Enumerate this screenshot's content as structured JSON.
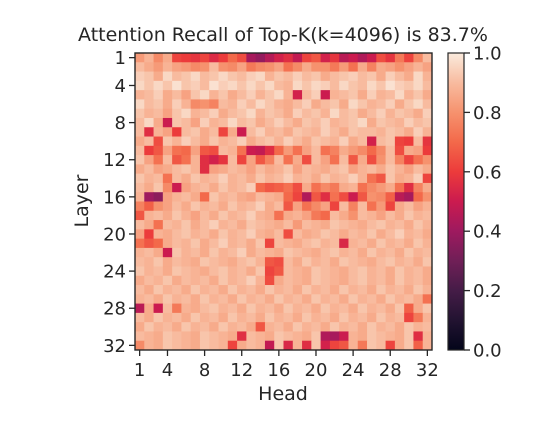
{
  "chart_data": {
    "type": "heatmap",
    "title": "Attention Recall of Top-K(k=4096) is 83.7%",
    "xlabel": "Head",
    "ylabel": "Layer",
    "x_tick_labels": [
      "1",
      "4",
      "8",
      "12",
      "16",
      "20",
      "24",
      "28",
      "32"
    ],
    "x_tick_values": [
      1,
      4,
      8,
      12,
      16,
      20,
      24,
      28,
      32
    ],
    "y_tick_labels": [
      "1",
      "4",
      "8",
      "12",
      "16",
      "20",
      "24",
      "28",
      "32"
    ],
    "y_tick_values": [
      1,
      4,
      8,
      12,
      16,
      20,
      24,
      28,
      32
    ],
    "rows": 32,
    "cols": 32,
    "colorbar": {
      "range": [
        0.0,
        1.0
      ],
      "tick_labels": [
        "0.0",
        "0.2",
        "0.4",
        "0.6",
        "0.8",
        "1.0"
      ],
      "tick_values": [
        0.0,
        0.2,
        0.4,
        0.6,
        0.8,
        1.0
      ]
    },
    "colormap": "rocket",
    "values": [
      [
        0.82,
        0.88,
        0.78,
        0.86,
        0.62,
        0.6,
        0.58,
        0.62,
        0.55,
        0.6,
        0.7,
        0.64,
        0.42,
        0.38,
        0.45,
        0.52,
        0.56,
        0.48,
        0.62,
        0.66,
        0.52,
        0.58,
        0.46,
        0.5,
        0.44,
        0.5,
        0.64,
        0.58,
        0.74,
        0.62,
        0.78,
        0.9
      ],
      [
        0.9,
        0.86,
        0.82,
        0.88,
        0.84,
        0.82,
        0.78,
        0.8,
        0.9,
        0.8,
        0.78,
        0.84,
        0.74,
        0.78,
        0.8,
        0.84,
        0.72,
        0.78,
        0.86,
        0.8,
        0.8,
        0.74,
        0.82,
        0.72,
        0.86,
        0.76,
        0.86,
        0.84,
        0.8,
        0.84,
        0.88,
        0.84
      ],
      [
        0.94,
        0.92,
        0.86,
        0.96,
        0.9,
        0.92,
        0.96,
        0.9,
        0.92,
        0.96,
        0.92,
        0.9,
        0.94,
        0.96,
        0.88,
        0.92,
        0.9,
        0.94,
        0.9,
        0.92,
        0.86,
        0.9,
        0.92,
        0.94,
        0.9,
        0.92,
        0.86,
        0.94,
        0.9,
        0.86,
        0.96,
        0.88
      ],
      [
        0.96,
        0.92,
        0.96,
        0.92,
        0.98,
        0.92,
        0.94,
        0.9,
        0.98,
        0.94,
        0.96,
        0.92,
        0.96,
        0.92,
        0.96,
        0.9,
        0.88,
        0.96,
        0.92,
        0.96,
        0.94,
        0.9,
        0.96,
        0.92,
        0.9,
        0.96,
        0.92,
        0.98,
        0.94,
        0.92,
        0.96,
        0.9
      ],
      [
        0.88,
        0.9,
        0.94,
        0.86,
        0.9,
        0.84,
        0.92,
        0.96,
        0.88,
        0.92,
        0.86,
        0.9,
        0.94,
        0.88,
        0.92,
        0.96,
        0.88,
        0.52,
        0.9,
        0.94,
        0.5,
        0.88,
        0.9,
        0.92,
        0.86,
        0.94,
        0.88,
        0.9,
        0.96,
        0.88,
        0.92,
        0.86
      ],
      [
        0.96,
        0.9,
        0.92,
        0.86,
        0.94,
        0.88,
        0.78,
        0.8,
        0.76,
        0.9,
        0.88,
        0.94,
        0.9,
        0.96,
        0.92,
        0.88,
        0.86,
        0.9,
        0.94,
        0.86,
        0.9,
        0.92,
        0.86,
        0.96,
        0.92,
        0.88,
        0.9,
        0.94,
        0.86,
        0.92,
        0.96,
        0.9
      ],
      [
        0.92,
        0.88,
        0.9,
        0.84,
        0.92,
        0.96,
        0.88,
        0.9,
        0.94,
        0.86,
        0.9,
        0.92,
        0.96,
        0.88,
        0.92,
        0.9,
        0.86,
        0.94,
        0.9,
        0.92,
        0.88,
        0.96,
        0.9,
        0.92,
        0.86,
        0.9,
        0.94,
        0.88,
        0.92,
        0.9,
        0.86,
        0.94
      ],
      [
        0.9,
        0.96,
        0.86,
        0.5,
        0.92,
        0.9,
        0.84,
        0.94,
        0.88,
        0.9,
        0.96,
        0.9,
        0.92,
        0.86,
        0.9,
        0.94,
        0.9,
        0.86,
        0.92,
        0.9,
        0.94,
        0.88,
        0.9,
        0.92,
        0.96,
        0.86,
        0.92,
        0.9,
        0.88,
        0.94,
        0.9,
        0.92
      ],
      [
        0.9,
        0.56,
        0.88,
        0.84,
        0.6,
        0.9,
        0.92,
        0.86,
        0.9,
        0.62,
        0.86,
        0.5,
        0.9,
        0.94,
        0.88,
        0.9,
        0.86,
        0.92,
        0.9,
        0.88,
        0.94,
        0.9,
        0.86,
        0.92,
        0.9,
        0.9,
        0.88,
        0.92,
        0.9,
        0.86,
        0.94,
        0.88
      ],
      [
        0.86,
        0.9,
        0.64,
        0.92,
        0.88,
        0.94,
        0.9,
        0.86,
        0.92,
        0.88,
        0.9,
        0.94,
        0.86,
        0.9,
        0.92,
        0.88,
        0.94,
        0.9,
        0.86,
        0.92,
        0.9,
        0.88,
        0.94,
        0.86,
        0.9,
        0.52,
        0.9,
        0.92,
        0.62,
        0.6,
        0.9,
        0.58
      ],
      [
        0.9,
        0.6,
        0.66,
        0.84,
        0.72,
        0.7,
        0.84,
        0.66,
        0.64,
        0.9,
        0.88,
        0.72,
        0.5,
        0.48,
        0.56,
        0.7,
        0.82,
        0.72,
        0.84,
        0.9,
        0.72,
        0.76,
        0.86,
        0.82,
        0.78,
        0.7,
        0.78,
        0.9,
        0.64,
        0.86,
        0.84,
        0.6
      ],
      [
        0.92,
        0.84,
        0.72,
        0.9,
        0.66,
        0.72,
        0.88,
        0.56,
        0.52,
        0.58,
        0.9,
        0.62,
        0.84,
        0.66,
        0.76,
        0.9,
        0.72,
        0.86,
        0.64,
        0.9,
        0.84,
        0.72,
        0.9,
        0.66,
        0.86,
        0.64,
        0.8,
        0.9,
        0.76,
        0.62,
        0.72,
        0.8
      ],
      [
        0.86,
        0.9,
        0.84,
        0.86,
        0.9,
        0.92,
        0.88,
        0.56,
        0.84,
        0.86,
        0.9,
        0.88,
        0.84,
        0.9,
        0.86,
        0.88,
        0.92,
        0.84,
        0.9,
        0.88,
        0.86,
        0.9,
        0.92,
        0.84,
        0.88,
        0.9,
        0.86,
        0.92,
        0.88,
        0.84,
        0.9,
        0.86
      ],
      [
        0.92,
        0.88,
        0.9,
        0.72,
        0.9,
        0.86,
        0.92,
        0.88,
        0.9,
        0.94,
        0.88,
        0.9,
        0.86,
        0.92,
        0.88,
        0.9,
        0.94,
        0.88,
        0.9,
        0.86,
        0.92,
        0.88,
        0.9,
        0.94,
        0.88,
        0.72,
        0.66,
        0.92,
        0.86,
        0.88,
        0.94,
        0.62
      ],
      [
        0.9,
        0.86,
        0.92,
        0.78,
        0.5,
        0.84,
        0.88,
        0.9,
        0.86,
        0.92,
        0.88,
        0.9,
        0.94,
        0.7,
        0.66,
        0.68,
        0.72,
        0.64,
        0.86,
        0.72,
        0.78,
        0.74,
        0.86,
        0.88,
        0.72,
        0.78,
        0.82,
        0.86,
        0.72,
        0.56,
        0.76,
        0.86
      ],
      [
        0.88,
        0.4,
        0.36,
        0.84,
        0.88,
        0.9,
        0.86,
        0.7,
        0.92,
        0.88,
        0.9,
        0.86,
        0.84,
        0.9,
        0.88,
        0.86,
        0.7,
        0.62,
        0.44,
        0.66,
        0.56,
        0.72,
        0.64,
        0.5,
        0.66,
        0.8,
        0.78,
        0.68,
        0.46,
        0.42,
        0.7,
        0.8
      ],
      [
        0.76,
        0.68,
        0.8,
        0.84,
        0.9,
        0.86,
        0.92,
        0.88,
        0.9,
        0.86,
        0.92,
        0.88,
        0.9,
        0.94,
        0.86,
        0.9,
        0.66,
        0.84,
        0.72,
        0.78,
        0.84,
        0.62,
        0.9,
        0.76,
        0.9,
        0.72,
        0.82,
        0.62,
        0.86,
        0.9,
        0.84,
        0.88
      ],
      [
        0.66,
        0.88,
        0.9,
        0.86,
        0.92,
        0.88,
        0.84,
        0.9,
        0.86,
        0.92,
        0.88,
        0.9,
        0.94,
        0.88,
        0.86,
        0.72,
        0.86,
        0.88,
        0.84,
        0.74,
        0.7,
        0.9,
        0.86,
        0.8,
        0.9,
        0.88,
        0.84,
        0.9,
        0.86,
        0.92,
        0.88,
        0.9
      ],
      [
        0.9,
        0.86,
        0.72,
        0.9,
        0.88,
        0.92,
        0.86,
        0.9,
        0.94,
        0.88,
        0.9,
        0.86,
        0.92,
        0.9,
        0.88,
        0.86,
        0.9,
        0.82,
        0.9,
        0.88,
        0.86,
        0.92,
        0.9,
        0.88,
        0.86,
        0.9,
        0.92,
        0.88,
        0.9,
        0.86,
        0.92,
        0.88
      ],
      [
        0.84,
        0.6,
        0.88,
        0.86,
        0.9,
        0.92,
        0.88,
        0.9,
        0.86,
        0.92,
        0.88,
        0.9,
        0.94,
        0.88,
        0.86,
        0.9,
        0.64,
        0.9,
        0.86,
        0.88,
        0.92,
        0.9,
        0.86,
        0.9,
        0.88,
        0.92,
        0.86,
        0.9,
        0.94,
        0.88,
        0.9,
        0.86
      ],
      [
        0.72,
        0.66,
        0.7,
        0.86,
        0.9,
        0.88,
        0.92,
        0.86,
        0.9,
        0.94,
        0.88,
        0.9,
        0.86,
        0.92,
        0.62,
        0.9,
        0.88,
        0.86,
        0.9,
        0.92,
        0.88,
        0.9,
        0.54,
        0.88,
        0.9,
        0.86,
        0.92,
        0.88,
        0.9,
        0.86,
        0.92,
        0.88
      ],
      [
        0.88,
        0.9,
        0.86,
        0.5,
        0.92,
        0.88,
        0.9,
        0.86,
        0.92,
        0.88,
        0.9,
        0.94,
        0.86,
        0.9,
        0.88,
        0.86,
        0.92,
        0.9,
        0.88,
        0.86,
        0.9,
        0.92,
        0.88,
        0.9,
        0.86,
        0.92,
        0.88,
        0.9,
        0.86,
        0.92,
        0.88,
        0.9
      ],
      [
        0.9,
        0.88,
        0.92,
        0.86,
        0.9,
        0.88,
        0.86,
        0.92,
        0.9,
        0.88,
        0.86,
        0.9,
        0.92,
        0.88,
        0.66,
        0.64,
        0.9,
        0.86,
        0.92,
        0.88,
        0.9,
        0.86,
        0.92,
        0.9,
        0.88,
        0.86,
        0.9,
        0.92,
        0.88,
        0.9,
        0.86,
        0.92
      ],
      [
        0.92,
        0.88,
        0.9,
        0.86,
        0.92,
        0.9,
        0.88,
        0.86,
        0.9,
        0.92,
        0.88,
        0.9,
        0.86,
        0.92,
        0.62,
        0.66,
        0.9,
        0.88,
        0.86,
        0.92,
        0.9,
        0.88,
        0.86,
        0.9,
        0.92,
        0.88,
        0.9,
        0.86,
        0.92,
        0.88,
        0.9,
        0.86
      ],
      [
        0.86,
        0.9,
        0.88,
        0.92,
        0.86,
        0.9,
        0.88,
        0.9,
        0.86,
        0.92,
        0.88,
        0.9,
        0.94,
        0.88,
        0.64,
        0.86,
        0.9,
        0.88,
        0.86,
        0.92,
        0.9,
        0.88,
        0.86,
        0.9,
        0.92,
        0.88,
        0.9,
        0.86,
        0.92,
        0.88,
        0.9,
        0.86
      ],
      [
        0.9,
        0.86,
        0.92,
        0.88,
        0.9,
        0.86,
        0.92,
        0.88,
        0.9,
        0.86,
        0.92,
        0.88,
        0.9,
        0.86,
        0.92,
        0.88,
        0.9,
        0.86,
        0.92,
        0.88,
        0.9,
        0.86,
        0.92,
        0.88,
        0.9,
        0.86,
        0.92,
        0.88,
        0.9,
        0.86,
        0.92,
        0.88
      ],
      [
        0.88,
        0.9,
        0.86,
        0.92,
        0.88,
        0.9,
        0.86,
        0.92,
        0.88,
        0.9,
        0.86,
        0.92,
        0.88,
        0.9,
        0.86,
        0.92,
        0.88,
        0.9,
        0.86,
        0.92,
        0.88,
        0.9,
        0.86,
        0.92,
        0.88,
        0.9,
        0.86,
        0.92,
        0.88,
        0.9,
        0.86,
        0.72
      ],
      [
        0.46,
        0.86,
        0.5,
        0.9,
        0.74,
        0.88,
        0.86,
        0.9,
        0.92,
        0.88,
        0.9,
        0.86,
        0.92,
        0.88,
        0.9,
        0.86,
        0.92,
        0.88,
        0.9,
        0.86,
        0.92,
        0.88,
        0.9,
        0.86,
        0.92,
        0.88,
        0.9,
        0.86,
        0.92,
        0.68,
        0.86,
        0.92
      ],
      [
        0.9,
        0.86,
        0.92,
        0.88,
        0.9,
        0.86,
        0.92,
        0.88,
        0.9,
        0.86,
        0.92,
        0.88,
        0.9,
        0.86,
        0.92,
        0.88,
        0.9,
        0.86,
        0.92,
        0.88,
        0.9,
        0.86,
        0.92,
        0.88,
        0.9,
        0.86,
        0.92,
        0.88,
        0.9,
        0.62,
        0.74,
        0.88
      ],
      [
        0.86,
        0.92,
        0.88,
        0.9,
        0.86,
        0.92,
        0.88,
        0.9,
        0.86,
        0.92,
        0.88,
        0.9,
        0.86,
        0.66,
        0.88,
        0.9,
        0.86,
        0.92,
        0.88,
        0.9,
        0.86,
        0.92,
        0.88,
        0.9,
        0.86,
        0.92,
        0.88,
        0.9,
        0.86,
        0.92,
        0.88,
        0.9
      ],
      [
        0.9,
        0.88,
        0.86,
        0.92,
        0.9,
        0.88,
        0.86,
        0.92,
        0.9,
        0.88,
        0.86,
        0.56,
        0.9,
        0.88,
        0.86,
        0.92,
        0.9,
        0.88,
        0.86,
        0.92,
        0.44,
        0.42,
        0.5,
        0.88,
        0.86,
        0.92,
        0.9,
        0.88,
        0.86,
        0.92,
        0.56,
        0.88
      ],
      [
        0.78,
        0.88,
        0.86,
        0.92,
        0.9,
        0.88,
        0.86,
        0.92,
        0.9,
        0.88,
        0.62,
        0.86,
        0.9,
        0.88,
        0.48,
        0.92,
        0.54,
        0.88,
        0.56,
        0.92,
        0.52,
        0.62,
        0.66,
        0.88,
        0.74,
        0.92,
        0.9,
        0.62,
        0.86,
        0.92,
        0.68,
        0.88
      ]
    ]
  }
}
